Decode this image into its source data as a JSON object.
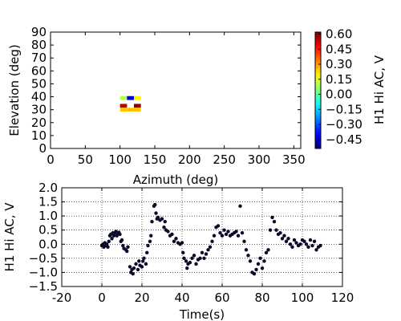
{
  "chart_data": [
    {
      "type": "heatmap",
      "x_label": "Azimuth (deg)",
      "y_label": "Elevation (deg)",
      "x": [
        105,
        115,
        125,
        105,
        125,
        105,
        115,
        125
      ],
      "y": [
        39,
        39,
        39,
        33,
        33,
        30,
        30,
        30
      ],
      "values": [
        0.1,
        -0.45,
        0.2,
        0.55,
        0.6,
        0.25,
        0.25,
        0.25
      ],
      "cell_size": [
        10,
        3
      ],
      "xlim": [
        0,
        360
      ],
      "xticks": [
        0,
        50,
        100,
        150,
        200,
        250,
        300,
        350
      ],
      "ylim": [
        0,
        90
      ],
      "yticks": [
        0,
        10,
        20,
        30,
        40,
        50,
        60,
        70,
        80,
        90
      ],
      "colormap": "jet",
      "colorbar": {
        "label": "H1 Hi AC, V",
        "clim": [
          -0.54,
          0.62
        ],
        "ticks": [
          {
            "value": 0.6,
            "label": "0.60"
          },
          {
            "value": 0.45,
            "label": "0.45"
          },
          {
            "value": 0.3,
            "label": "0.30"
          },
          {
            "value": 0.15,
            "label": "0.15"
          },
          {
            "value": 0,
            "label": "0.00"
          },
          {
            "value": -0.15,
            "label": "−0.15"
          },
          {
            "value": -0.3,
            "label": "−0.30"
          },
          {
            "value": -0.45,
            "label": "−0.45"
          }
        ]
      }
    },
    {
      "type": "scatter",
      "x_label": "Time(s)",
      "y_label": "H1 Hi AC, V",
      "color": "#0a0a2a",
      "grid": true,
      "x": [
        0,
        0.5,
        1,
        1.5,
        2,
        2.5,
        3,
        3.5,
        4,
        4.5,
        5,
        5.5,
        6,
        6.5,
        7,
        7.5,
        8,
        8.5,
        9,
        9.5,
        10,
        10.5,
        11,
        12,
        12.5,
        13,
        14,
        14.5,
        15,
        15.5,
        16,
        17,
        18,
        18.5,
        19,
        20,
        20.5,
        21,
        22,
        22.5,
        23,
        24,
        24.5,
        25,
        26,
        26.5,
        27,
        27.5,
        28,
        29,
        30,
        31,
        31.5,
        32,
        33,
        34,
        35,
        36,
        37,
        38,
        39,
        40,
        40.5,
        41,
        42,
        42.5,
        43,
        44,
        45,
        46,
        47,
        48,
        49,
        50,
        51,
        52,
        53,
        54,
        55,
        56,
        57,
        58,
        59,
        60,
        61,
        62,
        63,
        64,
        65,
        66,
        67,
        68,
        69,
        70,
        71,
        72,
        73,
        74,
        75,
        76,
        77,
        78,
        79,
        80,
        81,
        82,
        83,
        84,
        85,
        86,
        87,
        88,
        89,
        90,
        91,
        92,
        93,
        94,
        95,
        96,
        97,
        98,
        99,
        100,
        101,
        102,
        103,
        104,
        105,
        106,
        107,
        108,
        109
      ],
      "values": [
        -0.05,
        0,
        -0.1,
        0.05,
        -0.05,
        0,
        -0.1,
        0.1,
        0.3,
        0.35,
        0.2,
        0.4,
        0.3,
        0.4,
        0.45,
        0.3,
        0.4,
        0.42,
        0.35,
        0.1,
        0.15,
        -0.05,
        -0.15,
        -0.2,
        -0.25,
        -0.1,
        -0.8,
        -1.0,
        -0.9,
        -1.05,
        -0.85,
        -0.7,
        -0.9,
        -0.6,
        -0.75,
        -0.8,
        -0.6,
        -0.5,
        -0.7,
        -0.3,
        -0.05,
        0.1,
        0.3,
        0.8,
        1.35,
        1.4,
        1.1,
        0.9,
        0.95,
        0.85,
        0.9,
        0.6,
        0.8,
        0.5,
        0.45,
        0.3,
        0.35,
        0.1,
        0.2,
        0.05,
        0,
        0.05,
        -0.3,
        -0.5,
        -0.6,
        -0.85,
        -0.7,
        -0.65,
        -0.5,
        -0.4,
        -0.7,
        -0.55,
        -0.5,
        -0.3,
        -0.5,
        -0.35,
        -0.2,
        -0.1,
        0.1,
        0.3,
        0.6,
        0.65,
        0.4,
        0.3,
        0.5,
        0.35,
        0.45,
        0.3,
        0.35,
        0.4,
        0.45,
        0.3,
        1.35,
        0.4,
        0.1,
        -0.2,
        -0.4,
        -0.6,
        -1.0,
        -1.05,
        -0.9,
        -0.7,
        -0.5,
        -0.85,
        -0.6,
        -0.3,
        -0.2,
        0.5,
        0.95,
        0.8,
        0.5,
        0.35,
        0.4,
        0.2,
        0.3,
        0.1,
        0.2,
        0,
        -0.1,
        0.15,
        0.05,
        -0.05,
        0,
        0.15,
        0.1,
        0,
        -0.1,
        0.15,
        -0.05,
        0.1,
        -0.2,
        -0.1,
        -0.05
      ],
      "xlim": [
        -20,
        120
      ],
      "xticks": [
        -20,
        0,
        20,
        40,
        60,
        80,
        100,
        120
      ],
      "ylim": [
        -1.5,
        2.0
      ],
      "yticks": [
        {
          "value": -1.5,
          "label": "−1.5"
        },
        {
          "value": -1.0,
          "label": "−1.0"
        },
        {
          "value": -0.5,
          "label": "−0.5"
        },
        {
          "value": 0,
          "label": "0.0"
        },
        0.5,
        {
          "value": 1.0,
          "label": "1.0"
        },
        1.5,
        {
          "value": 2.0,
          "label": "2.0"
        }
      ]
    }
  ]
}
